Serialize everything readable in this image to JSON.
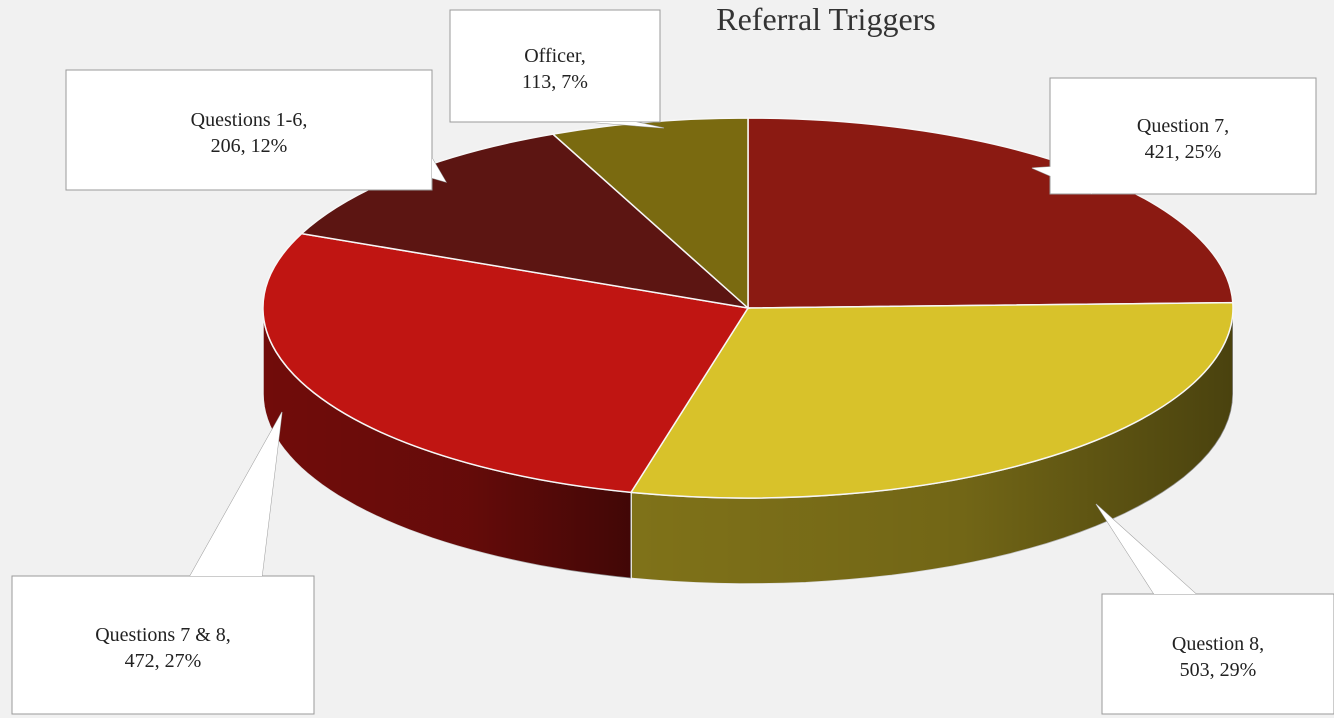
{
  "chart_data": {
    "type": "pie",
    "title": "Referral Triggers",
    "slices": [
      {
        "label": "Question 7",
        "value": 421,
        "percent": "25%",
        "color": "#8b1a12",
        "callout_line1": "Question 7,",
        "callout_line2": "421, 25%"
      },
      {
        "label": "Question 8",
        "value": 503,
        "percent": "29%",
        "color": "#d8c22a",
        "callout_line1": "Question 8,",
        "callout_line2": "503, 29%"
      },
      {
        "label": "Questions 7 & 8",
        "value": 472,
        "percent": "27%",
        "color": "#c01512",
        "callout_line1": "Questions 7 & 8,",
        "callout_line2": "472, 27%"
      },
      {
        "label": "Questions 1-6",
        "value": 206,
        "percent": "12%",
        "color": "#5c1512",
        "callout_line1": "Questions 1-6,",
        "callout_line2": "206, 12%"
      },
      {
        "label": "Officer",
        "value": 113,
        "percent": "7%",
        "color": "#7a6a10",
        "callout_line1": "Officer,",
        "callout_line2": "113, 7%"
      }
    ]
  }
}
